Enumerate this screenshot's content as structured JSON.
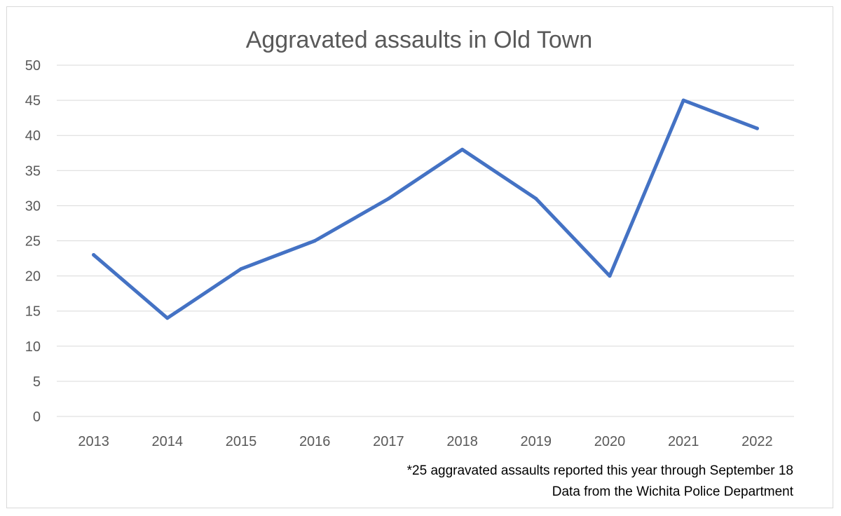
{
  "chart_data": {
    "type": "line",
    "title": "Aggravated assaults in Old Town",
    "xlabel": "",
    "ylabel": "",
    "categories": [
      "2013",
      "2014",
      "2015",
      "2016",
      "2017",
      "2018",
      "2019",
      "2020",
      "2021",
      "2022"
    ],
    "series": [
      {
        "values": [
          23,
          14,
          21,
          25,
          31,
          38,
          31,
          20,
          45,
          41
        ],
        "color": "#4472c4"
      }
    ],
    "ylim": [
      0,
      50
    ],
    "yticks": [
      "0",
      "5",
      "10",
      "15",
      "20",
      "25",
      "30",
      "35",
      "40",
      "45",
      "50"
    ],
    "grid": true,
    "legend": "none"
  },
  "notes": {
    "line1": "*25 aggravated assaults reported this year through September 18",
    "line2": "Data from the Wichita Police Department"
  }
}
